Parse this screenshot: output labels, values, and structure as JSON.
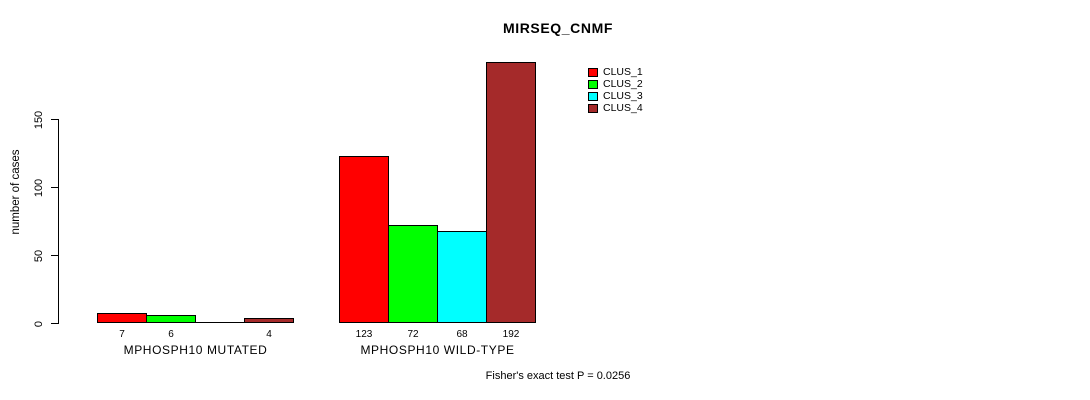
{
  "chart_data": {
    "type": "bar",
    "title": "MIRSEQ_CNMF",
    "xlabel": "",
    "ylabel": "number of cases",
    "ylim": [
      0,
      195
    ],
    "yticks": [
      0,
      50,
      100,
      150
    ],
    "grid": false,
    "legend_position": "top-right",
    "categories": [
      "MPHOSPH10 MUTATED",
      "MPHOSPH10 WILD-TYPE"
    ],
    "series": [
      {
        "name": "CLUS_1",
        "color": "#FF0000",
        "values": [
          7,
          123
        ]
      },
      {
        "name": "CLUS_2",
        "color": "#00FF00",
        "values": [
          6,
          72
        ]
      },
      {
        "name": "CLUS_3",
        "color": "#00FFFF",
        "values": [
          0,
          68
        ]
      },
      {
        "name": "CLUS_4",
        "color": "#A52A2A",
        "values": [
          4,
          192
        ]
      }
    ],
    "bar_value_labels": [
      [
        "7",
        "6",
        "",
        "4"
      ],
      [
        "123",
        "72",
        "68",
        "192"
      ]
    ],
    "annotation": "Fisher's exact test P = 0.0256"
  },
  "colors": {
    "background": "#FFFFFF",
    "axis": "#000000",
    "text": "#000000"
  }
}
